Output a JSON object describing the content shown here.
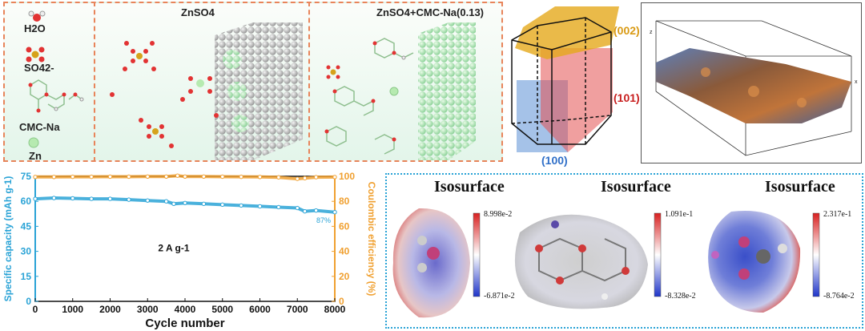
{
  "legend_panel": {
    "h2o": "H2O",
    "so4": "SO42-",
    "cmc": "CMC-Na",
    "zn": "Zn"
  },
  "znso4_panel": {
    "title": "ZnSO4"
  },
  "cmc_panel": {
    "title": "ZnSO4+CMC-Na(0.13)"
  },
  "crystal": {
    "plane_002": "(002)",
    "plane_101": "(101)",
    "plane_100": "(100)",
    "colors": {
      "p002": "#e5a91c",
      "p101": "#e35050",
      "p100": "#5b8fd6"
    }
  },
  "surface3d": {
    "axis_z": "z",
    "axis_x": "x"
  },
  "chart_data": {
    "type": "scatter",
    "xlabel": "Cycle number",
    "ylabel_left": "Specific capacity (mAh g-1)",
    "ylabel_right": "Coulombic efficiency (%)",
    "xlim": [
      0,
      8000
    ],
    "ylim_left": [
      0,
      75
    ],
    "ylim_right": [
      0,
      100
    ],
    "x_ticks": [
      0,
      1000,
      2000,
      3000,
      4000,
      5000,
      6000,
      7000,
      8000
    ],
    "y_ticks_left": [
      0,
      15,
      30,
      45,
      60,
      75
    ],
    "y_ticks_right": [
      0,
      20,
      40,
      60,
      80,
      100
    ],
    "annotation_condition": "2 A g-1",
    "annotation_retention": "87%",
    "series": [
      {
        "color": "#2aa3d6",
        "axis": "left",
        "x": [
          0,
          500,
          1000,
          1500,
          2000,
          2500,
          3000,
          3500,
          3700,
          4000,
          4500,
          5000,
          5500,
          6000,
          6500,
          7000,
          7200,
          7500,
          8000
        ],
        "y": [
          61.5,
          62,
          61.8,
          61.5,
          61.5,
          61,
          60.5,
          60,
          58.5,
          59,
          58.5,
          58,
          57.5,
          57,
          56.5,
          56,
          54,
          54.5,
          53.5
        ]
      },
      {
        "color": "#f0a030",
        "axis": "right",
        "x": [
          0,
          500,
          1000,
          1500,
          2000,
          2500,
          3000,
          3500,
          3800,
          4000,
          4500,
          5000,
          5500,
          6000,
          6500,
          7000,
          7200,
          7500,
          8000
        ],
        "y": [
          99.5,
          99.5,
          99.6,
          99.6,
          99.7,
          99.7,
          99.8,
          99.8,
          100.5,
          99.8,
          99.8,
          99.7,
          99.6,
          99.5,
          99.2,
          98,
          98.5,
          99.3,
          99.4
        ]
      }
    ]
  },
  "isosurfaces": [
    {
      "title": "Isosurface",
      "max": "8.998e-2",
      "min": "-6.871e-2"
    },
    {
      "title": "Isosurface",
      "max": "1.091e-1",
      "min": "-8.328e-2"
    },
    {
      "title": "Isosurface",
      "max": "2.317e-1",
      "min": "-8.764e-2"
    }
  ]
}
